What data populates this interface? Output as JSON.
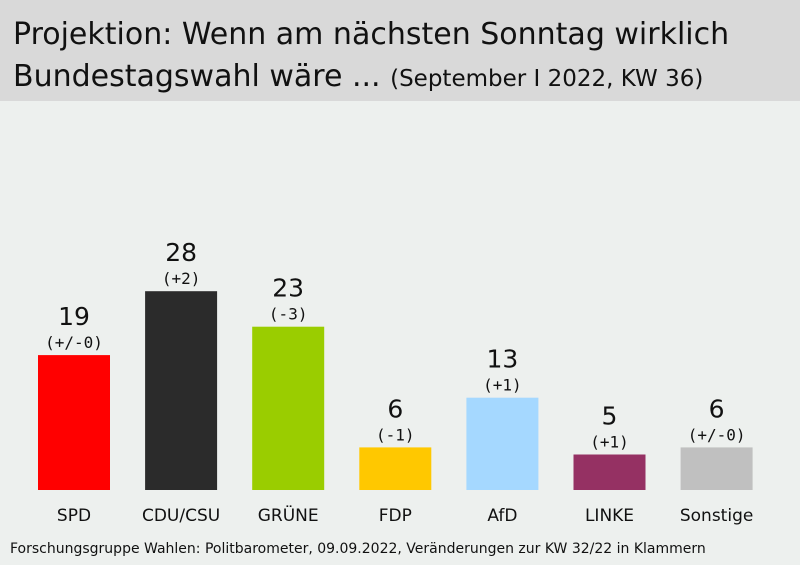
{
  "header": {
    "title_main": "Projektion: Wenn am nächsten Sonntag wirklich Bundestagswahl wäre ...",
    "title_sub": "(September I 2022, KW 36)"
  },
  "chart_data": {
    "type": "bar",
    "title": "Projektion: Wenn am nächsten Sonntag wirklich Bundestagswahl wäre ... (September I 2022, KW 36)",
    "categories": [
      "SPD",
      "CDU/CSU",
      "GRÜNE",
      "FDP",
      "AfD",
      "LINKE",
      "Sonstige"
    ],
    "values": [
      19,
      28,
      23,
      6,
      13,
      5,
      6
    ],
    "changes": [
      "(+/-0)",
      "(+2)",
      "(-3)",
      "(-1)",
      "(+1)",
      "(+1)",
      "(+/-0)"
    ],
    "colors": [
      "#ff0000",
      "#2b2b2b",
      "#9acd00",
      "#ffc800",
      "#a5d8ff",
      "#953163",
      "#c0c0c0"
    ],
    "xlabel": "",
    "ylabel": "",
    "ylim": [
      0,
      30
    ],
    "grid": false,
    "legend": "none"
  },
  "footer": {
    "source": "Forschungsgruppe Wahlen: Politbarometer, 09.09.2022, Veränderungen zur KW 32/22 in Klammern"
  }
}
